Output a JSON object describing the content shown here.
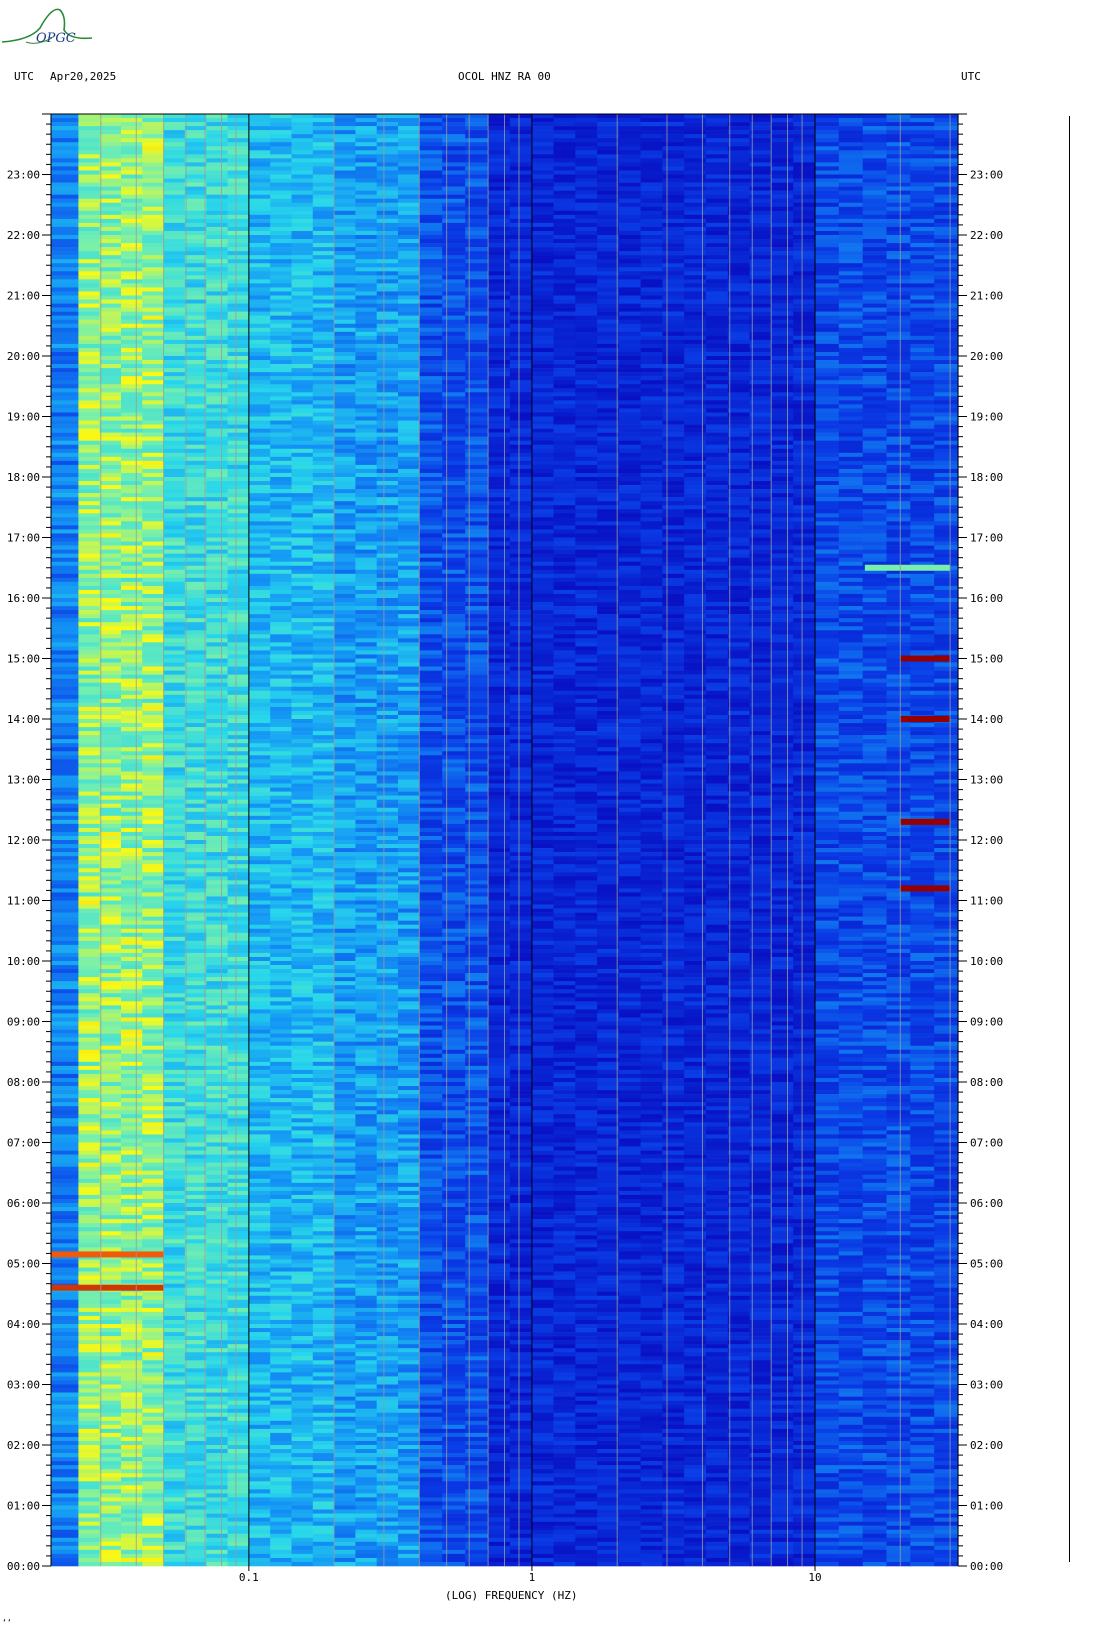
{
  "logo_text": "OPGC",
  "header": {
    "left_label": "UTC",
    "date": "Apr20,2025",
    "station": "OCOL HNZ RA 00",
    "right_label": "UTC"
  },
  "footer_mark": "‘‘",
  "colors": {
    "background": "#ffffff",
    "spectrogram_low": "#0a16c8",
    "spectrogram_mid": "#1fb0f0",
    "spectrogram_high": "#ffff00",
    "spectrogram_peak": "#a00000",
    "logo": "#2a8a3a"
  },
  "chart_data": {
    "type": "heatmap",
    "title": "OCOL HNZ RA 00",
    "date": "Apr20,2025",
    "xlabel": "(LOG) FREQUENCY (HZ)",
    "x_scale": "log",
    "xlim": [
      0.02,
      32
    ],
    "x_ticks": [
      {
        "value": 0.1,
        "label": "0.1"
      },
      {
        "value": 1,
        "label": "1"
      },
      {
        "value": 10,
        "label": "10"
      }
    ],
    "ylabel": "UTC",
    "ylim_hours": [
      0,
      24
    ],
    "y_ticks": [
      "00:00",
      "01:00",
      "02:00",
      "03:00",
      "04:00",
      "05:00",
      "06:00",
      "07:00",
      "08:00",
      "09:00",
      "10:00",
      "11:00",
      "12:00",
      "13:00",
      "14:00",
      "15:00",
      "16:00",
      "17:00",
      "18:00",
      "19:00",
      "20:00",
      "21:00",
      "22:00",
      "23:00"
    ],
    "frequency_bands": [
      {
        "from_hz": 0.02,
        "to_hz": 0.025,
        "level": 0.35
      },
      {
        "from_hz": 0.025,
        "to_hz": 0.05,
        "level": 0.72
      },
      {
        "from_hz": 0.05,
        "to_hz": 0.1,
        "level": 0.58
      },
      {
        "from_hz": 0.1,
        "to_hz": 0.2,
        "level": 0.48
      },
      {
        "from_hz": 0.2,
        "to_hz": 0.4,
        "level": 0.42
      },
      {
        "from_hz": 0.4,
        "to_hz": 0.7,
        "level": 0.24
      },
      {
        "from_hz": 0.7,
        "to_hz": 10,
        "level": 0.1
      },
      {
        "from_hz": 10,
        "to_hz": 32,
        "level": 0.22
      }
    ],
    "energy_events": [
      {
        "hour": 4.6,
        "freq_from_hz": 0.02,
        "freq_to_hz": 0.05,
        "level": 0.95
      },
      {
        "hour": 5.15,
        "freq_from_hz": 0.02,
        "freq_to_hz": 0.05,
        "level": 0.92
      },
      {
        "hour": 15.0,
        "freq_from_hz": 20,
        "freq_to_hz": 30,
        "level": 1.0
      },
      {
        "hour": 14.0,
        "freq_from_hz": 20,
        "freq_to_hz": 30,
        "level": 1.0
      },
      {
        "hour": 12.3,
        "freq_from_hz": 20,
        "freq_to_hz": 30,
        "level": 1.0
      },
      {
        "hour": 11.2,
        "freq_from_hz": 20,
        "freq_to_hz": 30,
        "level": 1.0
      },
      {
        "hour": 16.5,
        "freq_from_hz": 15,
        "freq_to_hz": 30,
        "level": 0.7
      }
    ],
    "legend": "none",
    "grid": true
  }
}
